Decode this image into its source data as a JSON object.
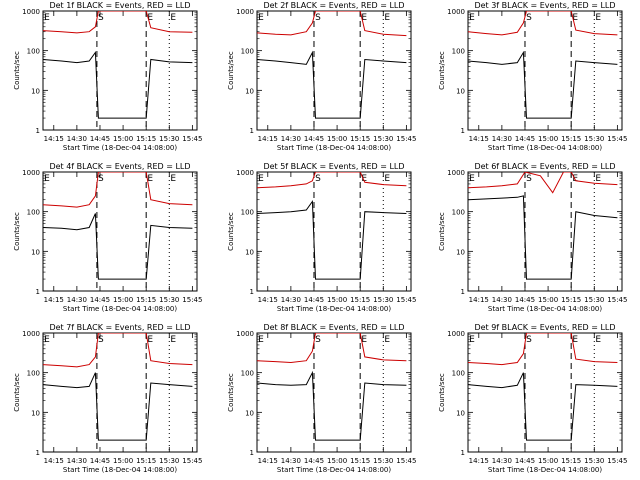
{
  "chart_data": [
    {
      "type": "line",
      "title": "Det 1f BLACK = Events, RED = LLD",
      "xlabel": "Start Time (18-Dec-04 14:08:00)",
      "ylabel": "Counts/sec",
      "xlim_minutes_from_start": [
        0,
        100
      ],
      "ylim": [
        1,
        1000
      ],
      "y_scale": "log",
      "x_ticks": [
        "14:15",
        "14:30",
        "14:45",
        "15:00",
        "15:15",
        "15:30",
        "15:45"
      ],
      "y_ticks": [
        "1",
        "10",
        "100",
        "1000"
      ],
      "markers": [
        {
          "label": "E",
          "time": "14:08",
          "style": "dotted"
        },
        {
          "label": "S",
          "time": "14:43",
          "style": "dashed"
        },
        {
          "label": "E",
          "time": "15:15",
          "style": "dashed"
        },
        {
          "label": "E",
          "time": "15:30",
          "style": "dotted"
        }
      ],
      "series": [
        {
          "color": "#cc0000",
          "x": [
            "14:08",
            "14:20",
            "14:30",
            "14:38",
            "14:42",
            "14:44",
            "15:15",
            "15:18",
            "15:30",
            "15:45"
          ],
          "values": [
            320,
            300,
            280,
            300,
            400,
            1000,
            1000,
            380,
            300,
            290
          ]
        },
        {
          "color": "#000000",
          "x": [
            "14:08",
            "14:20",
            "14:30",
            "14:38",
            "14:42",
            "14:44",
            "15:15",
            "15:18",
            "15:30",
            "15:45"
          ],
          "values": [
            60,
            55,
            50,
            55,
            90,
            2,
            2,
            60,
            52,
            50
          ]
        }
      ]
    },
    {
      "type": "line",
      "title": "Det 2f BLACK = Events, RED = LLD",
      "xlabel": "Start Time (18-Dec-04 14:08:00)",
      "ylabel": "Counts/sec",
      "xlim_minutes_from_start": [
        0,
        100
      ],
      "ylim": [
        1,
        1000
      ],
      "y_scale": "log",
      "x_ticks": [
        "14:15",
        "14:30",
        "14:45",
        "15:00",
        "15:15",
        "15:30",
        "15:45"
      ],
      "y_ticks": [
        "1",
        "10",
        "100",
        "1000"
      ],
      "markers": [
        {
          "label": "E",
          "time": "14:08",
          "style": "dotted"
        },
        {
          "label": "S",
          "time": "14:45",
          "style": "dashed"
        },
        {
          "label": "E",
          "time": "15:15",
          "style": "dashed"
        },
        {
          "label": "E",
          "time": "15:30",
          "style": "dotted"
        }
      ],
      "series": [
        {
          "color": "#cc0000",
          "x": [
            "14:08",
            "14:20",
            "14:30",
            "14:40",
            "14:44",
            "14:46",
            "15:15",
            "15:18",
            "15:30",
            "15:45"
          ],
          "values": [
            280,
            260,
            250,
            300,
            500,
            1000,
            1000,
            320,
            260,
            240
          ]
        },
        {
          "color": "#000000",
          "x": [
            "14:08",
            "14:20",
            "14:30",
            "14:40",
            "14:44",
            "14:46",
            "15:15",
            "15:18",
            "15:30",
            "15:45"
          ],
          "values": [
            60,
            55,
            50,
            45,
            90,
            2,
            2,
            60,
            55,
            50
          ]
        }
      ]
    },
    {
      "type": "line",
      "title": "Det 3f BLACK = Events, RED = LLD",
      "xlabel": "Start Time (18-Dec-04 14:08:00)",
      "ylabel": "Counts/sec",
      "xlim_minutes_from_start": [
        0,
        100
      ],
      "ylim": [
        1,
        1000
      ],
      "y_scale": "log",
      "x_ticks": [
        "14:15",
        "14:30",
        "14:45",
        "15:00",
        "15:15",
        "15:30",
        "15:45"
      ],
      "y_ticks": [
        "1",
        "10",
        "100",
        "1000"
      ],
      "markers": [
        {
          "label": "E",
          "time": "14:08",
          "style": "dotted"
        },
        {
          "label": "S",
          "time": "14:45",
          "style": "dashed"
        },
        {
          "label": "E",
          "time": "15:15",
          "style": "dashed"
        },
        {
          "label": "E",
          "time": "15:30",
          "style": "dotted"
        }
      ],
      "series": [
        {
          "color": "#cc0000",
          "x": [
            "14:08",
            "14:20",
            "14:30",
            "14:40",
            "14:44",
            "14:46",
            "15:15",
            "15:18",
            "15:30",
            "15:45"
          ],
          "values": [
            300,
            270,
            250,
            290,
            500,
            1000,
            1000,
            330,
            270,
            250
          ]
        },
        {
          "color": "#000000",
          "x": [
            "14:08",
            "14:20",
            "14:30",
            "14:40",
            "14:44",
            "14:46",
            "15:15",
            "15:18",
            "15:30",
            "15:45"
          ],
          "values": [
            55,
            50,
            45,
            50,
            90,
            2,
            2,
            55,
            50,
            45
          ]
        }
      ]
    },
    {
      "type": "line",
      "title": "Det 4f BLACK = Events, RED = LLD",
      "xlabel": "Start Time (18-Dec-04 14:08:00)",
      "ylabel": "Counts/sec",
      "xlim_minutes_from_start": [
        0,
        100
      ],
      "ylim": [
        1,
        1000
      ],
      "y_scale": "log",
      "x_ticks": [
        "14:15",
        "14:30",
        "14:45",
        "15:00",
        "15:15",
        "15:30",
        "15:45"
      ],
      "y_ticks": [
        "1",
        "10",
        "100",
        "1000"
      ],
      "markers": [
        {
          "label": "E",
          "time": "14:08",
          "style": "dotted"
        },
        {
          "label": "S",
          "time": "14:43",
          "style": "dashed"
        },
        {
          "label": "E",
          "time": "15:15",
          "style": "dashed"
        },
        {
          "label": "E",
          "time": "15:30",
          "style": "dotted"
        }
      ],
      "series": [
        {
          "color": "#cc0000",
          "x": [
            "14:08",
            "14:20",
            "14:30",
            "14:38",
            "14:42",
            "14:44",
            "15:15",
            "15:18",
            "15:30",
            "15:45"
          ],
          "values": [
            150,
            140,
            130,
            150,
            250,
            1000,
            1000,
            200,
            160,
            150
          ]
        },
        {
          "color": "#000000",
          "x": [
            "14:08",
            "14:20",
            "14:30",
            "14:38",
            "14:42",
            "14:44",
            "15:15",
            "15:18",
            "15:30",
            "15:45"
          ],
          "values": [
            40,
            38,
            35,
            40,
            90,
            2,
            2,
            45,
            40,
            38
          ]
        }
      ]
    },
    {
      "type": "line",
      "title": "Det 5f BLACK = Events, RED = LLD",
      "xlabel": "Start Time (18-Dec-04 14:08:00)",
      "ylabel": "Counts/sec",
      "xlim_minutes_from_start": [
        0,
        100
      ],
      "ylim": [
        1,
        1000
      ],
      "y_scale": "log",
      "x_ticks": [
        "14:15",
        "14:30",
        "14:45",
        "15:00",
        "15:15",
        "15:30",
        "15:45"
      ],
      "y_ticks": [
        "1",
        "10",
        "100",
        "1000"
      ],
      "markers": [
        {
          "label": "E",
          "time": "14:08",
          "style": "dotted"
        },
        {
          "label": "S",
          "time": "14:45",
          "style": "dashed"
        },
        {
          "label": "E",
          "time": "15:15",
          "style": "dashed"
        },
        {
          "label": "E",
          "time": "15:30",
          "style": "dotted"
        }
      ],
      "series": [
        {
          "color": "#cc0000",
          "x": [
            "14:08",
            "14:20",
            "14:30",
            "14:40",
            "14:44",
            "14:46",
            "15:15",
            "15:18",
            "15:30",
            "15:45"
          ],
          "values": [
            400,
            420,
            450,
            500,
            600,
            1000,
            1000,
            550,
            480,
            450
          ]
        },
        {
          "color": "#000000",
          "x": [
            "14:08",
            "14:20",
            "14:30",
            "14:40",
            "14:44",
            "14:46",
            "15:15",
            "15:18",
            "15:30",
            "15:45"
          ],
          "values": [
            90,
            95,
            100,
            110,
            180,
            2,
            2,
            100,
            95,
            90
          ]
        }
      ]
    },
    {
      "type": "line",
      "title": "Det 6f BLACK = Events, RED = LLD",
      "xlabel": "Start Time (18-Dec-04 14:08:00)",
      "ylabel": "Counts/sec",
      "xlim_minutes_from_start": [
        0,
        100
      ],
      "ylim": [
        1,
        1000
      ],
      "y_scale": "log",
      "x_ticks": [
        "14:15",
        "14:30",
        "14:45",
        "15:00",
        "15:15",
        "15:30",
        "15:45"
      ],
      "y_ticks": [
        "1",
        "10",
        "100",
        "1000"
      ],
      "markers": [
        {
          "label": "E",
          "time": "14:08",
          "style": "dotted"
        },
        {
          "label": "S",
          "time": "14:45",
          "style": "dashed"
        },
        {
          "label": "E",
          "time": "15:15",
          "style": "dashed"
        },
        {
          "label": "E",
          "time": "15:30",
          "style": "dotted"
        }
      ],
      "series": [
        {
          "color": "#cc0000",
          "x": [
            "14:08",
            "14:20",
            "14:30",
            "14:40",
            "14:45",
            "14:55",
            "15:03",
            "15:10",
            "15:15",
            "15:18",
            "15:30",
            "15:45"
          ],
          "values": [
            400,
            420,
            450,
            500,
            1000,
            800,
            300,
            1000,
            1000,
            600,
            520,
            480
          ]
        },
        {
          "color": "#000000",
          "x": [
            "14:08",
            "14:20",
            "14:30",
            "14:40",
            "14:44",
            "14:46",
            "15:15",
            "15:18",
            "15:30",
            "15:45"
          ],
          "values": [
            200,
            210,
            220,
            230,
            250,
            2,
            2,
            100,
            80,
            70
          ]
        }
      ]
    },
    {
      "type": "line",
      "title": "Det 7f BLACK = Events, RED = LLD",
      "xlabel": "Start Time (18-Dec-04 14:08:00)",
      "ylabel": "Counts/sec",
      "xlim_minutes_from_start": [
        0,
        100
      ],
      "ylim": [
        1,
        1000
      ],
      "y_scale": "log",
      "x_ticks": [
        "14:15",
        "14:30",
        "14:45",
        "15:00",
        "15:15",
        "15:30",
        "15:45"
      ],
      "y_ticks": [
        "1",
        "10",
        "100",
        "1000"
      ],
      "markers": [
        {
          "label": "E",
          "time": "14:08",
          "style": "dotted"
        },
        {
          "label": "S",
          "time": "14:43",
          "style": "dashed"
        },
        {
          "label": "E",
          "time": "15:15",
          "style": "dashed"
        },
        {
          "label": "E",
          "time": "15:30",
          "style": "dotted"
        }
      ],
      "series": [
        {
          "color": "#cc0000",
          "x": [
            "14:08",
            "14:20",
            "14:30",
            "14:38",
            "14:42",
            "14:44",
            "15:15",
            "15:18",
            "15:30",
            "15:45"
          ],
          "values": [
            160,
            150,
            140,
            160,
            250,
            1000,
            1000,
            200,
            170,
            160
          ]
        },
        {
          "color": "#000000",
          "x": [
            "14:08",
            "14:20",
            "14:30",
            "14:38",
            "14:42",
            "14:44",
            "15:15",
            "15:18",
            "15:30",
            "15:45"
          ],
          "values": [
            50,
            45,
            42,
            45,
            100,
            2,
            2,
            55,
            50,
            45
          ]
        }
      ]
    },
    {
      "type": "line",
      "title": "Det 8f BLACK = Events, RED = LLD",
      "xlabel": "Start Time (18-Dec-04 14:08:00)",
      "ylabel": "Counts/sec",
      "xlim_minutes_from_start": [
        0,
        100
      ],
      "ylim": [
        1,
        1000
      ],
      "y_scale": "log",
      "x_ticks": [
        "14:15",
        "14:30",
        "14:45",
        "15:00",
        "15:15",
        "15:30",
        "15:45"
      ],
      "y_ticks": [
        "1",
        "10",
        "100",
        "1000"
      ],
      "markers": [
        {
          "label": "E",
          "time": "14:08",
          "style": "dotted"
        },
        {
          "label": "S",
          "time": "14:45",
          "style": "dashed"
        },
        {
          "label": "E",
          "time": "15:15",
          "style": "dashed"
        },
        {
          "label": "E",
          "time": "15:30",
          "style": "dotted"
        }
      ],
      "series": [
        {
          "color": "#cc0000",
          "x": [
            "14:08",
            "14:20",
            "14:30",
            "14:40",
            "14:44",
            "14:46",
            "15:15",
            "15:18",
            "15:30",
            "15:45"
          ],
          "values": [
            200,
            190,
            180,
            200,
            350,
            1000,
            1000,
            250,
            210,
            200
          ]
        },
        {
          "color": "#000000",
          "x": [
            "14:08",
            "14:20",
            "14:30",
            "14:40",
            "14:44",
            "14:46",
            "15:15",
            "15:18",
            "15:30",
            "15:45"
          ],
          "values": [
            55,
            50,
            48,
            50,
            100,
            2,
            2,
            55,
            50,
            48
          ]
        }
      ]
    },
    {
      "type": "line",
      "title": "Det 9f BLACK = Events, RED = LLD",
      "xlabel": "Start Time (18-Dec-04 14:08:00)",
      "ylabel": "Counts/sec",
      "xlim_minutes_from_start": [
        0,
        100
      ],
      "ylim": [
        1,
        1000
      ],
      "y_scale": "log",
      "x_ticks": [
        "14:15",
        "14:30",
        "14:45",
        "15:00",
        "15:15",
        "15:30",
        "15:45"
      ],
      "y_ticks": [
        "1",
        "10",
        "100",
        "1000"
      ],
      "markers": [
        {
          "label": "E",
          "time": "14:08",
          "style": "dotted"
        },
        {
          "label": "S",
          "time": "14:45",
          "style": "dashed"
        },
        {
          "label": "E",
          "time": "15:15",
          "style": "dashed"
        },
        {
          "label": "E",
          "time": "15:30",
          "style": "dotted"
        }
      ],
      "series": [
        {
          "color": "#cc0000",
          "x": [
            "14:08",
            "14:20",
            "14:30",
            "14:40",
            "14:44",
            "14:46",
            "15:15",
            "15:18",
            "15:30",
            "15:45"
          ],
          "values": [
            180,
            170,
            160,
            180,
            300,
            1000,
            1000,
            220,
            190,
            180
          ]
        },
        {
          "color": "#000000",
          "x": [
            "14:08",
            "14:20",
            "14:30",
            "14:40",
            "14:44",
            "14:46",
            "15:15",
            "15:18",
            "15:30",
            "15:45"
          ],
          "values": [
            50,
            45,
            42,
            48,
            100,
            2,
            2,
            50,
            48,
            45
          ]
        }
      ]
    }
  ]
}
